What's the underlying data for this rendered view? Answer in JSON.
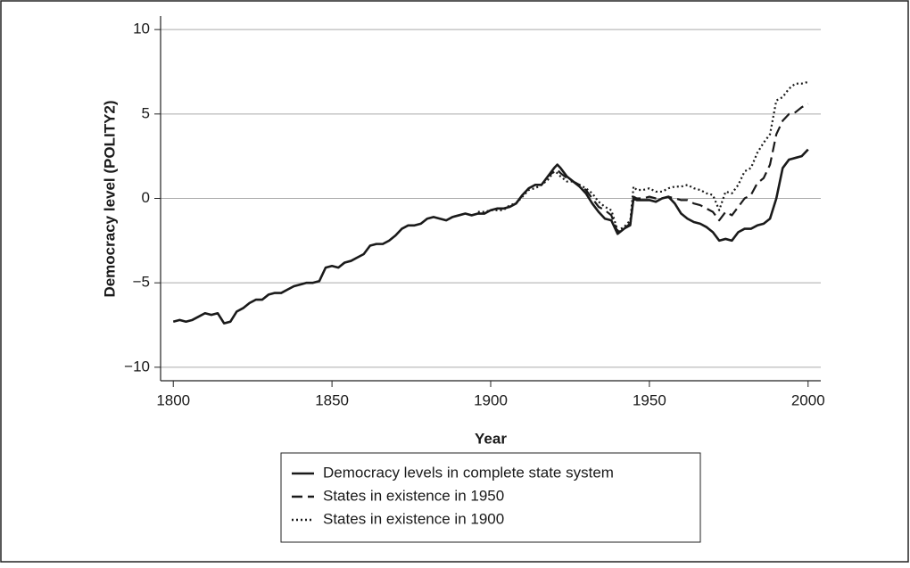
{
  "chart_data": {
    "type": "line",
    "xlabel": "Year",
    "ylabel": "Democracy level (POLITY2)",
    "x": [
      1800,
      1802,
      1804,
      1806,
      1808,
      1810,
      1812,
      1814,
      1816,
      1818,
      1820,
      1822,
      1824,
      1826,
      1828,
      1830,
      1832,
      1834,
      1836,
      1838,
      1840,
      1842,
      1844,
      1846,
      1848,
      1850,
      1852,
      1854,
      1856,
      1858,
      1860,
      1862,
      1864,
      1866,
      1868,
      1870,
      1872,
      1874,
      1876,
      1878,
      1880,
      1882,
      1884,
      1886,
      1888,
      1890,
      1892,
      1894,
      1896,
      1898,
      1900,
      1902,
      1904,
      1906,
      1908,
      1910,
      1912,
      1914,
      1916,
      1918,
      1920,
      1921,
      1922,
      1924,
      1926,
      1928,
      1930,
      1932,
      1934,
      1936,
      1938,
      1940,
      1942,
      1944,
      1945,
      1946,
      1948,
      1950,
      1952,
      1954,
      1956,
      1958,
      1960,
      1962,
      1964,
      1966,
      1968,
      1970,
      1972,
      1974,
      1976,
      1978,
      1980,
      1982,
      1984,
      1986,
      1988,
      1990,
      1992,
      1994,
      1996,
      1998,
      2000
    ],
    "series": [
      {
        "name": "Democracy levels in complete state system",
        "color": "#1a1a1a",
        "style": "solid",
        "values": [
          -7.3,
          -7.2,
          -7.3,
          -7.2,
          -7.0,
          -6.8,
          -6.9,
          -6.8,
          -7.4,
          -7.3,
          -6.7,
          -6.5,
          -6.2,
          -6.0,
          -6.0,
          -5.7,
          -5.6,
          -5.6,
          -5.4,
          -5.2,
          -5.1,
          -5.0,
          -5.0,
          -4.9,
          -4.1,
          -4.0,
          -4.1,
          -3.8,
          -3.7,
          -3.5,
          -3.3,
          -2.8,
          -2.7,
          -2.7,
          -2.5,
          -2.2,
          -1.8,
          -1.6,
          -1.6,
          -1.5,
          -1.2,
          -1.1,
          -1.2,
          -1.3,
          -1.1,
          -1.0,
          -0.9,
          -1.0,
          -0.9,
          -0.9,
          -0.7,
          -0.6,
          -0.6,
          -0.5,
          -0.3,
          0.2,
          0.6,
          0.8,
          0.8,
          1.3,
          1.8,
          2.0,
          1.8,
          1.3,
          1.0,
          0.7,
          0.3,
          -0.3,
          -0.8,
          -1.2,
          -1.3,
          -2.1,
          -1.8,
          -1.5,
          0.0,
          -0.1,
          -0.1,
          -0.1,
          -0.2,
          0.0,
          0.1,
          -0.3,
          -0.9,
          -1.2,
          -1.4,
          -1.5,
          -1.7,
          -2.0,
          -2.5,
          -2.4,
          -2.5,
          -2.0,
          -1.8,
          -1.8,
          -1.6,
          -1.5,
          -1.2,
          0.0,
          1.8,
          2.3,
          2.4,
          2.5,
          2.9
        ]
      },
      {
        "name": "States in existence in 1950",
        "color": "#1a1a1a",
        "style": "dashed",
        "values": [
          null,
          null,
          null,
          null,
          null,
          null,
          null,
          null,
          null,
          null,
          null,
          null,
          null,
          null,
          null,
          null,
          null,
          null,
          null,
          null,
          null,
          null,
          null,
          null,
          null,
          null,
          null,
          null,
          null,
          null,
          null,
          null,
          null,
          null,
          null,
          null,
          null,
          null,
          null,
          null,
          null,
          null,
          null,
          null,
          null,
          null,
          null,
          null,
          null,
          null,
          null,
          null,
          null,
          -0.5,
          -0.3,
          0.2,
          0.6,
          0.8,
          0.8,
          1.3,
          1.6,
          1.7,
          1.5,
          1.2,
          1.0,
          0.8,
          0.5,
          0.0,
          -0.5,
          -0.7,
          -1.0,
          -2.0,
          -1.8,
          -1.6,
          0.1,
          0.0,
          0.0,
          0.1,
          0.0,
          0.0,
          0.1,
          0.0,
          -0.1,
          -0.1,
          -0.3,
          -0.4,
          -0.6,
          -0.8,
          -1.3,
          -0.8,
          -1.0,
          -0.5,
          0.0,
          0.2,
          0.9,
          1.2,
          2.0,
          3.8,
          4.6,
          5.0,
          5.1,
          5.4,
          5.6
        ]
      },
      {
        "name": "States in existence in 1900",
        "color": "#1a1a1a",
        "style": "dotted",
        "values": [
          null,
          null,
          null,
          null,
          null,
          null,
          null,
          null,
          null,
          null,
          null,
          null,
          null,
          null,
          null,
          null,
          null,
          null,
          null,
          null,
          null,
          null,
          null,
          null,
          null,
          null,
          null,
          null,
          null,
          null,
          null,
          null,
          null,
          null,
          null,
          null,
          null,
          null,
          null,
          null,
          null,
          null,
          null,
          null,
          null,
          null,
          null,
          null,
          -0.8,
          -0.8,
          -0.7,
          -0.7,
          -0.7,
          -0.4,
          -0.3,
          0.1,
          0.5,
          0.6,
          0.8,
          1.1,
          1.6,
          1.5,
          1.3,
          1.0,
          1.0,
          0.8,
          0.6,
          0.3,
          -0.2,
          -0.5,
          -0.7,
          -1.9,
          -1.7,
          -1.3,
          0.7,
          0.5,
          0.5,
          0.6,
          0.4,
          0.4,
          0.6,
          0.7,
          0.7,
          0.8,
          0.6,
          0.5,
          0.3,
          0.2,
          -0.7,
          0.4,
          0.3,
          0.8,
          1.6,
          1.8,
          2.7,
          3.3,
          3.8,
          5.8,
          6.0,
          6.5,
          6.8,
          6.8,
          6.9
        ]
      }
    ],
    "xlim": [
      1796,
      2004
    ],
    "xticks": [
      1800,
      1850,
      1900,
      1950,
      2000
    ],
    "ylim": [
      -10.8,
      10.8
    ],
    "yticks": [
      {
        "value": -10,
        "label": "−10"
      },
      {
        "value": -5,
        "label": "−5"
      },
      0,
      5,
      10
    ],
    "grid": true,
    "legend": "bottom"
  }
}
